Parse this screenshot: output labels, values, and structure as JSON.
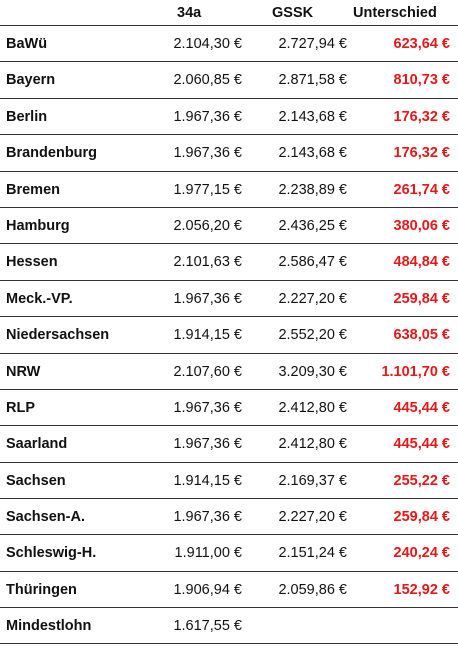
{
  "table": {
    "headers": {
      "col_34a": "34a",
      "col_gssk": "GSSK",
      "col_diff": "Unterschied"
    },
    "rows": [
      {
        "state": "BaWü",
        "v34a": "2.104,30 €",
        "gssk": "2.727,94 €",
        "diff": "623,64 €"
      },
      {
        "state": "Bayern",
        "v34a": "2.060,85 €",
        "gssk": "2.871,58 €",
        "diff": "810,73 €"
      },
      {
        "state": "Berlin",
        "v34a": "1.967,36 €",
        "gssk": "2.143,68 €",
        "diff": "176,32 €"
      },
      {
        "state": "Brandenburg",
        "v34a": "1.967,36 €",
        "gssk": "2.143,68 €",
        "diff": "176,32 €"
      },
      {
        "state": "Bremen",
        "v34a": "1.977,15 €",
        "gssk": "2.238,89 €",
        "diff": "261,74 €"
      },
      {
        "state": "Hamburg",
        "v34a": "2.056,20 €",
        "gssk": "2.436,25 €",
        "diff": "380,06 €"
      },
      {
        "state": "Hessen",
        "v34a": "2.101,63 €",
        "gssk": "2.586,47 €",
        "diff": "484,84 €"
      },
      {
        "state": "Meck.-VP.",
        "v34a": "1.967,36 €",
        "gssk": "2.227,20 €",
        "diff": "259,84 €"
      },
      {
        "state": "Niedersachsen",
        "v34a": "1.914,15 €",
        "gssk": "2.552,20 €",
        "diff": "638,05 €"
      },
      {
        "state": "NRW",
        "v34a": "2.107,60 €",
        "gssk": "3.209,30 €",
        "diff": "1.101,70 €"
      },
      {
        "state": "RLP",
        "v34a": "1.967,36 €",
        "gssk": "2.412,80 €",
        "diff": "445,44 €"
      },
      {
        "state": "Saarland",
        "v34a": "1.967,36 €",
        "gssk": "2.412,80 €",
        "diff": "445,44 €"
      },
      {
        "state": "Sachsen",
        "v34a": "1.914,15 €",
        "gssk": "2.169,37 €",
        "diff": "255,22 €"
      },
      {
        "state": "Sachsen-A.",
        "v34a": "1.967,36 €",
        "gssk": "2.227,20 €",
        "diff": "259,84 €"
      },
      {
        "state": "Schleswig-H.",
        "v34a": "1.911,00 €",
        "gssk": "2.151,24 €",
        "diff": "240,24 €"
      },
      {
        "state": "Thüringen",
        "v34a": "1.906,94 €",
        "gssk": "2.059,86 €",
        "diff": "152,92 €"
      },
      {
        "state": "Mindestlohn",
        "v34a": "1.617,55 €",
        "gssk": "",
        "diff": ""
      }
    ]
  },
  "colors": {
    "difference_text": "#e8171a",
    "rule_line": "#333333"
  }
}
